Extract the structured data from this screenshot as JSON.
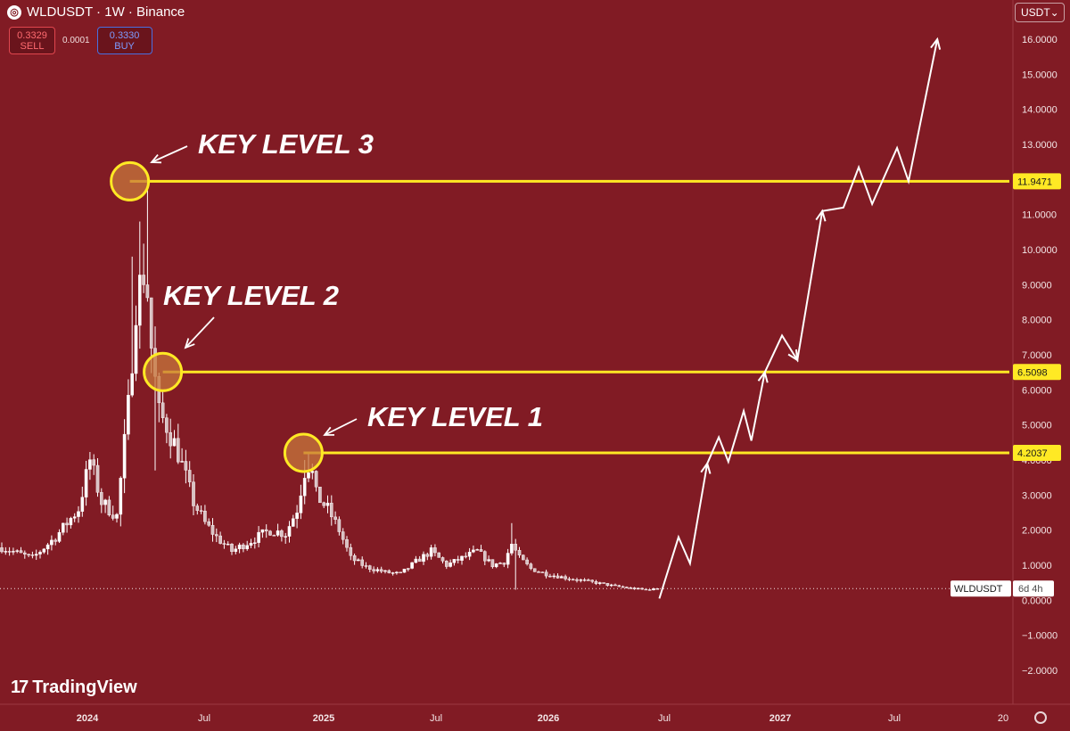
{
  "header": {
    "symbol_line": "WLDUSDT · 1W · Binance",
    "logo_icon": "worldcoin-logo-icon"
  },
  "trade": {
    "sell_price": "0.3329",
    "sell_label": "SELL",
    "spread": "0.0001",
    "buy_price": "0.3330",
    "buy_label": "BUY"
  },
  "currency_select": {
    "value": "USDT",
    "icon": "chevron-down-icon"
  },
  "watermark": {
    "text": "TradingView",
    "icon": "tradingview-logo-icon"
  },
  "settings_icon": "gear-icon",
  "colors": {
    "background": "#811b24",
    "key_level": "#ffe924",
    "candle": "#ffffff",
    "projection": "#ffffff"
  },
  "chart_data": {
    "type": "candlestick",
    "timeframe": "1W",
    "ylim": [
      -2.5,
      16.9
    ],
    "y_ticks": [
      "16.0000",
      "15.0000",
      "14.0000",
      "13.0000",
      "12.0000",
      "11.0000",
      "10.0000",
      "9.0000",
      "8.0000",
      "7.0000",
      "6.0000",
      "5.0000",
      "4.0000",
      "3.0000",
      "2.0000",
      "1.0000",
      "0.0000",
      "−1.0000",
      "−2.0000"
    ],
    "x_ticks": [
      "2024",
      "Jul",
      "2025",
      "Jul",
      "2026",
      "Jul",
      "2027",
      "Jul",
      "20"
    ],
    "key_levels": [
      {
        "label": "KEY LEVEL 3",
        "price": 11.9471,
        "price_label": "11.9471"
      },
      {
        "label": "KEY LEVEL 2",
        "price": 6.5098,
        "price_label": "6.5098"
      },
      {
        "label": "KEY LEVEL 1",
        "price": 4.2037,
        "price_label": "4.2037"
      }
    ],
    "last_price_tag": {
      "symbol": "WLDUSDT",
      "countdown": "6d 4h",
      "price": 0.333
    },
    "price_path_anchors": [
      {
        "t": 0.0,
        "p": 1.5
      },
      {
        "t": 8.0,
        "p": 1.2
      },
      {
        "t": 14.0,
        "p": 1.8
      },
      {
        "t": 20.0,
        "p": 2.6
      },
      {
        "t": 23.0,
        "p": 4.0
      },
      {
        "t": 26.0,
        "p": 2.8
      },
      {
        "t": 30.0,
        "p": 2.4
      },
      {
        "t": 33.0,
        "p": 5.5
      },
      {
        "t": 35.0,
        "p": 8.5
      },
      {
        "t": 37.5,
        "p": 9.6
      },
      {
        "t": 39.0,
        "p": 7.2
      },
      {
        "t": 41.0,
        "p": 5.3
      },
      {
        "t": 43.0,
        "p": 5.0
      },
      {
        "t": 46.0,
        "p": 4.2
      },
      {
        "t": 50.0,
        "p": 2.8
      },
      {
        "t": 53.0,
        "p": 2.2
      },
      {
        "t": 56.0,
        "p": 1.8
      },
      {
        "t": 60.0,
        "p": 1.4
      },
      {
        "t": 65.0,
        "p": 1.7
      },
      {
        "t": 70.0,
        "p": 2.0
      },
      {
        "t": 74.0,
        "p": 1.9
      },
      {
        "t": 77.0,
        "p": 2.6
      },
      {
        "t": 79.0,
        "p": 3.7
      },
      {
        "t": 80.5,
        "p": 3.9
      },
      {
        "t": 82.0,
        "p": 3.0
      },
      {
        "t": 85.0,
        "p": 2.6
      },
      {
        "t": 88.0,
        "p": 2.0
      },
      {
        "t": 91.0,
        "p": 1.2
      },
      {
        "t": 95.0,
        "p": 0.95
      },
      {
        "t": 100.0,
        "p": 0.8
      },
      {
        "t": 104.0,
        "p": 0.75
      },
      {
        "t": 108.0,
        "p": 1.1
      },
      {
        "t": 112.0,
        "p": 1.4
      },
      {
        "t": 116.0,
        "p": 1.0
      },
      {
        "t": 120.0,
        "p": 1.2
      },
      {
        "t": 124.0,
        "p": 1.4
      },
      {
        "t": 128.0,
        "p": 1.0
      },
      {
        "t": 131.0,
        "p": 1.1
      },
      {
        "t": 133.0,
        "p": 1.6
      },
      {
        "t": 135.0,
        "p": 1.2
      },
      {
        "t": 138.0,
        "p": 0.9
      },
      {
        "t": 142.0,
        "p": 0.75
      },
      {
        "t": 148.0,
        "p": 0.62
      },
      {
        "t": 155.0,
        "p": 0.5
      },
      {
        "t": 160.0,
        "p": 0.4
      },
      {
        "t": 165.0,
        "p": 0.33
      },
      {
        "t": 168.0,
        "p": 0.3
      },
      {
        "t": 171.0,
        "p": 0.333
      }
    ],
    "projection_path": [
      {
        "week": 171.5,
        "price": 0.05
      },
      {
        "week": 176.5,
        "price": 1.8
      },
      {
        "week": 179.5,
        "price": 1.05
      },
      {
        "week": 184.0,
        "price": 3.9
      },
      {
        "week": 187.0,
        "price": 4.65
      },
      {
        "week": 189.5,
        "price": 3.95
      },
      {
        "week": 193.5,
        "price": 5.4
      },
      {
        "week": 195.5,
        "price": 4.55
      },
      {
        "week": 199.0,
        "price": 6.5
      },
      {
        "week": 203.5,
        "price": 7.55
      },
      {
        "week": 207.5,
        "price": 6.85
      },
      {
        "week": 214.0,
        "price": 11.1
      },
      {
        "week": 219.5,
        "price": 11.2
      },
      {
        "week": 223.5,
        "price": 12.35
      },
      {
        "week": 227.0,
        "price": 11.3
      },
      {
        "week": 233.5,
        "price": 12.9
      },
      {
        "week": 236.5,
        "price": 11.95
      },
      {
        "week": 244.0,
        "price": 16.0
      }
    ]
  }
}
